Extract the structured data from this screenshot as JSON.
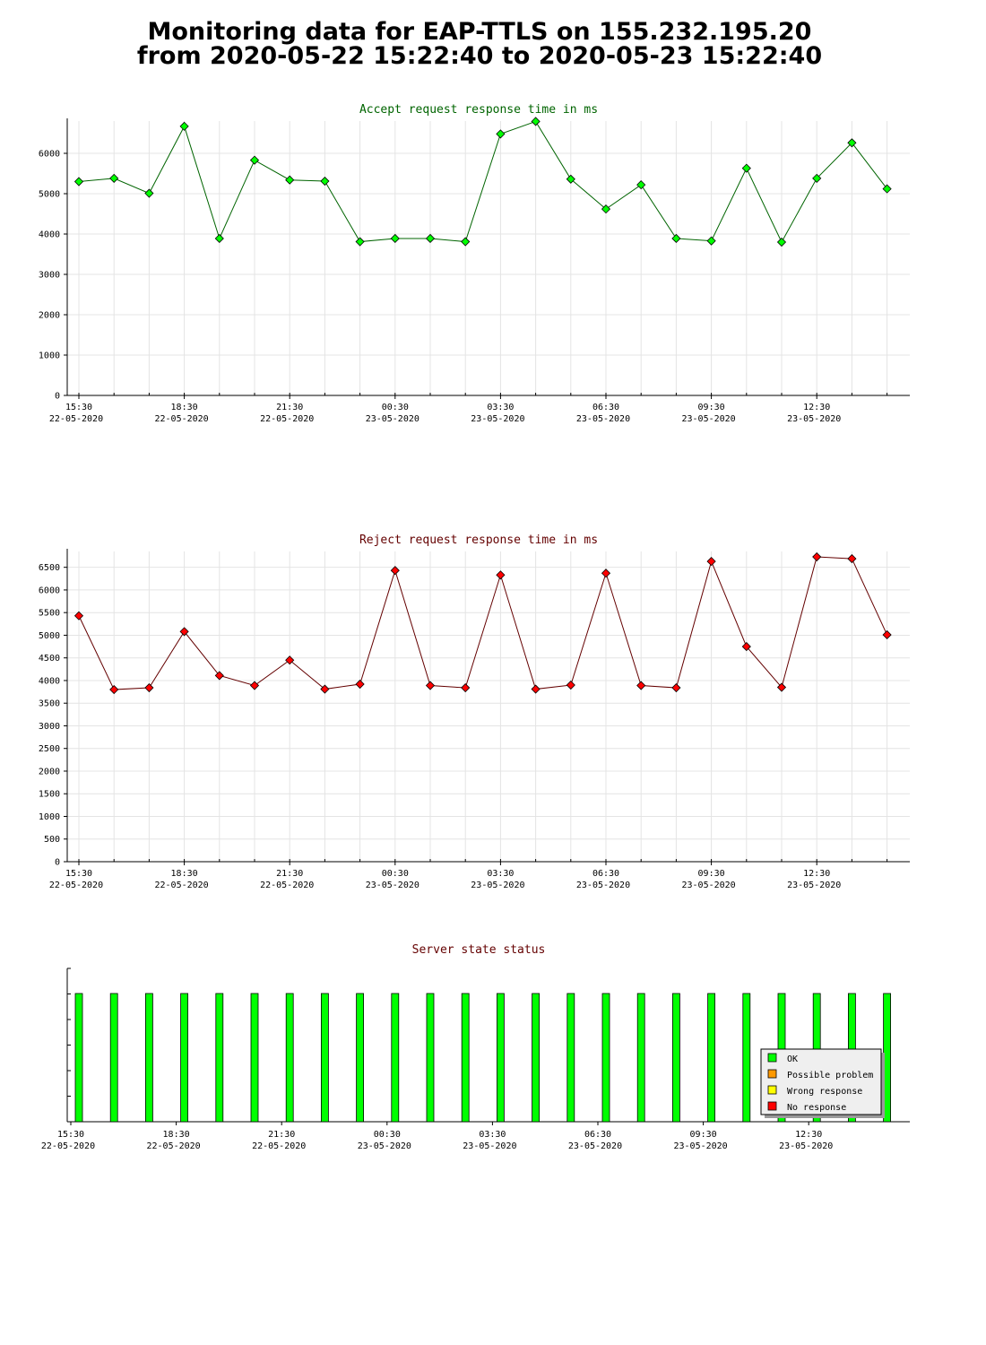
{
  "page": {
    "title_line1": "Monitoring data for EAP-TTLS on 155.232.195.20",
    "title_line2": "from 2020-05-22 15:22:40 to 2020-05-23 15:22:40"
  },
  "x_axis": {
    "ticks": [
      {
        "time": "15:30",
        "date": "22-05-2020",
        "hour": 0
      },
      {
        "time": "18:30",
        "date": "22-05-2020",
        "hour": 3
      },
      {
        "time": "21:30",
        "date": "22-05-2020",
        "hour": 6
      },
      {
        "time": "00:30",
        "date": "23-05-2020",
        "hour": 9
      },
      {
        "time": "03:30",
        "date": "23-05-2020",
        "hour": 12
      },
      {
        "time": "06:30",
        "date": "23-05-2020",
        "hour": 15
      },
      {
        "time": "09:30",
        "date": "23-05-2020",
        "hour": 18
      },
      {
        "time": "12:30",
        "date": "23-05-2020",
        "hour": 21
      }
    ]
  },
  "chart_data": [
    {
      "type": "line",
      "title": "Accept request response time in ms",
      "color": "#00ff00",
      "line_color": "#006400",
      "title_color": "#006400",
      "ylim": [
        0,
        6800
      ],
      "yticks": [
        0,
        1000,
        2000,
        3000,
        4000,
        5000,
        6000
      ],
      "x": [
        0.33,
        1.33,
        2.33,
        3.33,
        4.33,
        5.33,
        6.33,
        7.33,
        8.33,
        9.33,
        10.33,
        11.33,
        12.33,
        13.33,
        14.33,
        15.33,
        16.33,
        17.33,
        18.33,
        19.33,
        20.33,
        21.33,
        22.33,
        23.33
      ],
      "values": [
        5300,
        5380,
        5010,
        6670,
        3890,
        5830,
        5340,
        5310,
        3810,
        3890,
        3890,
        3810,
        6480,
        6790,
        5360,
        4620,
        5220,
        3890,
        3830,
        5630,
        3800,
        5380,
        6260,
        5120
      ]
    },
    {
      "type": "line",
      "title": "Reject request response time in ms",
      "color": "#ff0000",
      "line_color": "#640000",
      "title_color": "#640000",
      "ylim": [
        0,
        6850
      ],
      "yticks": [
        0,
        500,
        1000,
        1500,
        2000,
        2500,
        3000,
        3500,
        4000,
        4500,
        5000,
        5500,
        6000,
        6500
      ],
      "x": [
        0.33,
        1.33,
        2.33,
        3.33,
        4.33,
        5.33,
        6.33,
        7.33,
        8.33,
        9.33,
        10.33,
        11.33,
        12.33,
        13.33,
        14.33,
        15.33,
        16.33,
        17.33,
        18.33,
        19.33,
        20.33,
        21.33,
        22.33,
        23.33
      ],
      "values": [
        5430,
        3800,
        3840,
        5080,
        4110,
        3890,
        4450,
        3810,
        3920,
        6430,
        3890,
        3840,
        6330,
        3810,
        3900,
        6370,
        3890,
        3840,
        6630,
        4750,
        3850,
        6730,
        6690,
        5010
      ]
    },
    {
      "type": "bar",
      "title": "Server state status",
      "title_color": "#640000",
      "x": [
        0.33,
        1.33,
        2.33,
        3.33,
        4.33,
        5.33,
        6.33,
        7.33,
        8.33,
        9.33,
        10.33,
        11.33,
        12.33,
        13.33,
        14.33,
        15.33,
        16.33,
        17.33,
        18.33,
        19.33,
        20.33,
        21.33,
        22.33,
        23.33
      ],
      "states": [
        "OK",
        "OK",
        "OK",
        "OK",
        "OK",
        "OK",
        "OK",
        "OK",
        "OK",
        "OK",
        "OK",
        "OK",
        "OK",
        "OK",
        "OK",
        "OK",
        "OK",
        "OK",
        "OK",
        "OK",
        "OK",
        "OK",
        "OK",
        "OK"
      ],
      "legend": [
        {
          "label": "OK",
          "state": "OK",
          "color": "#00ff00"
        },
        {
          "label": "Possible problem",
          "state": "Possible problem",
          "color": "#ff9900"
        },
        {
          "label": "Wrong response",
          "state": "Wrong response",
          "color": "#ffff00"
        },
        {
          "label": "No response",
          "state": "No response",
          "color": "#ff0000"
        }
      ],
      "legend_position": "bottom-right"
    }
  ]
}
